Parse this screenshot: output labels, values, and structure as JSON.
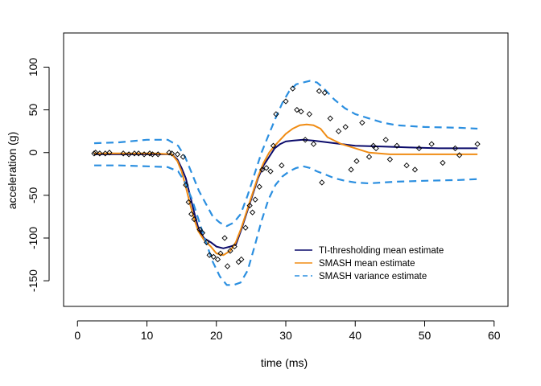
{
  "chart_data": {
    "type": "line",
    "title": "",
    "xlabel": "time (ms)",
    "ylabel": "acceleration (g)",
    "xlim": [
      -2,
      62
    ],
    "ylim": [
      -180,
      140
    ],
    "xticks": [
      0,
      10,
      20,
      30,
      40,
      50,
      60
    ],
    "yticks": [
      -150,
      -100,
      -50,
      0,
      50,
      100
    ],
    "grid": false,
    "legend_position": "bottom-right",
    "series": [
      {
        "name": "TI-thresholding mean estimate",
        "color": "#0b0b6b",
        "style": "solid",
        "x": [
          2.4,
          5,
          8,
          11,
          13.6,
          14.4,
          15,
          15.6,
          16.2,
          16.8,
          17.4,
          18.2,
          19.2,
          20,
          21,
          22,
          22.8,
          23.6,
          24.4,
          25.2,
          26,
          26.8,
          27.6,
          28.4,
          29.2,
          30,
          31,
          32.5,
          34,
          36,
          38,
          40,
          44,
          48,
          52,
          57.6
        ],
        "y": [
          -2,
          -2,
          -2,
          -2,
          -2,
          -8,
          -18,
          -30,
          -50,
          -70,
          -88,
          -100,
          -105,
          -110,
          -112,
          -110,
          -108,
          -90,
          -70,
          -50,
          -30,
          -15,
          -5,
          5,
          10,
          13,
          14,
          15,
          14,
          12,
          10,
          8,
          7,
          6,
          5,
          5
        ]
      },
      {
        "name": "SMASH mean estimate",
        "color": "#f08c14",
        "style": "solid",
        "x": [
          2.4,
          5,
          8,
          11,
          13.6,
          14.4,
          15,
          15.6,
          16.2,
          16.8,
          17.4,
          18.2,
          19.2,
          20,
          21,
          22,
          22.8,
          23.6,
          24.4,
          25.2,
          26,
          26.8,
          27.6,
          28.4,
          29.2,
          30,
          31,
          32,
          33,
          34,
          35,
          36,
          38,
          40,
          42,
          45,
          50,
          57.6
        ],
        "y": [
          -1,
          -1,
          -1,
          -1,
          -2,
          -10,
          -22,
          -40,
          -60,
          -78,
          -92,
          -102,
          -110,
          -118,
          -120,
          -115,
          -105,
          -88,
          -68,
          -48,
          -28,
          -12,
          0,
          8,
          15,
          22,
          28,
          32,
          33,
          32,
          28,
          18,
          10,
          5,
          0,
          -2,
          -2,
          -2
        ]
      },
      {
        "name": "SMASH variance estimate",
        "color": "#2b8fe0",
        "style": "dashed",
        "x": [
          2.4,
          6,
          10,
          13,
          14.5,
          15.5,
          16.5,
          17.5,
          18.5,
          19.5,
          20.5,
          21.5,
          22.5,
          23.5,
          24.5,
          25.5,
          26.5,
          27.5,
          28.5,
          29.5,
          30.5,
          31.5,
          32.5,
          33.5,
          34.5,
          35.5,
          37,
          38.5,
          40,
          42,
          44,
          46,
          50,
          55,
          57.6
        ],
        "y": [
          11,
          12,
          15,
          15,
          8,
          -5,
          -25,
          -45,
          -60,
          -75,
          -82,
          -86,
          -82,
          -72,
          -50,
          -25,
          0,
          20,
          40,
          58,
          72,
          80,
          82,
          84,
          82,
          75,
          62,
          52,
          45,
          40,
          35,
          32,
          30,
          29,
          28
        ]
      },
      {
        "name": "",
        "color": "#2b8fe0",
        "style": "dashed",
        "x": [
          2.4,
          6,
          10,
          13,
          14.5,
          15.5,
          16.5,
          17.5,
          18.5,
          19.5,
          20.5,
          21.5,
          22.5,
          23.5,
          24.5,
          25.5,
          26.5,
          27.5,
          28.5,
          29.5,
          30.5,
          31.5,
          32.5,
          33.5,
          34.5,
          35.5,
          37,
          38.5,
          40,
          42,
          44,
          46,
          50,
          55,
          57.6
        ],
        "y": [
          -15,
          -15,
          -16,
          -17,
          -22,
          -35,
          -55,
          -80,
          -105,
          -128,
          -145,
          -155,
          -155,
          -152,
          -138,
          -110,
          -80,
          -55,
          -38,
          -28,
          -22,
          -18,
          -16,
          -18,
          -22,
          -25,
          -30,
          -33,
          -35,
          -36,
          -35,
          -34,
          -33,
          -32,
          -31
        ]
      }
    ],
    "scatter": {
      "name": "",
      "marker": "open-diamond",
      "color": "#000000",
      "x": [
        2.4,
        2.6,
        3.2,
        4.0,
        4.6,
        6.6,
        7.4,
        8.2,
        8.8,
        9.6,
        10.4,
        10.8,
        11.6,
        13.2,
        13.6,
        14.4,
        15.2,
        15.6,
        16.0,
        16.4,
        16.8,
        17.6,
        18.0,
        18.6,
        19.0,
        19.6,
        20.2,
        20.6,
        21.2,
        21.6,
        22.0,
        22.6,
        23.2,
        23.6,
        24.2,
        24.8,
        25.2,
        25.6,
        26.2,
        26.6,
        27.2,
        27.8,
        28.2,
        28.6,
        29.4,
        30.0,
        31.0,
        31.6,
        32.2,
        32.8,
        33.4,
        34.0,
        34.8,
        35.2,
        35.6,
        36.4,
        37.6,
        38.6,
        39.4,
        40.2,
        41.0,
        42.0,
        42.6,
        43.0,
        44.4,
        45.0,
        46.0,
        47.4,
        48.6,
        49.2,
        51.0,
        52.6,
        54.4,
        55.0,
        57.6
      ],
      "y": [
        -1,
        0,
        -1,
        -1,
        0,
        -1,
        -2,
        -1,
        -1,
        -2,
        -1,
        -2,
        -2,
        0,
        -1,
        -2,
        -5,
        -38,
        -58,
        -72,
        -78,
        -90,
        -94,
        -105,
        -120,
        -122,
        -125,
        -118,
        -100,
        -133,
        -115,
        -110,
        -128,
        -125,
        -88,
        -62,
        -70,
        -55,
        -40,
        -20,
        -18,
        -22,
        8,
        45,
        -15,
        60,
        75,
        50,
        48,
        15,
        45,
        10,
        72,
        -35,
        70,
        40,
        25,
        30,
        -20,
        -10,
        35,
        -5,
        8,
        5,
        15,
        -8,
        8,
        -15,
        -20,
        5,
        10,
        -12,
        5,
        -3,
        10
      ]
    }
  }
}
